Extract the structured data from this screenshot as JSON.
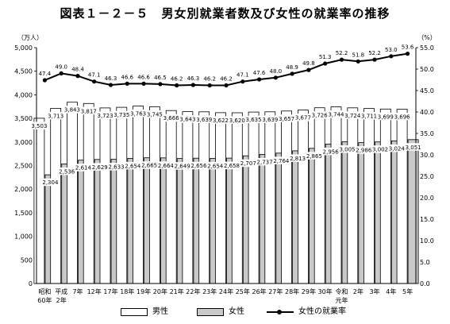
{
  "chart_data": {
    "type": "bar",
    "title": "図表１－２－５　男女別就業者数及び女性の就業率の推移",
    "left_unit": "（万人）",
    "right_unit": "（%）",
    "left_ylim": [
      0,
      5000
    ],
    "left_ticks": [
      "0",
      "500",
      "1,000",
      "1,500",
      "2,000",
      "2,500",
      "3,000",
      "3,500",
      "4,000",
      "4,500",
      "5,000"
    ],
    "right_ylim": [
      0,
      55
    ],
    "right_ticks": [
      "0.0",
      "5.0",
      "10.0",
      "15.0",
      "20.0",
      "25.0",
      "30.0",
      "35.0",
      "40.0",
      "45.0",
      "50.0",
      "55.0"
    ],
    "grid": false,
    "legend_position": "bottom",
    "categories": [
      [
        "昭和",
        "60年"
      ],
      [
        "平成",
        "2年"
      ],
      [
        "7年"
      ],
      [
        "12年"
      ],
      [
        "17年"
      ],
      [
        "18年"
      ],
      [
        "19年"
      ],
      [
        "20年"
      ],
      [
        "21年"
      ],
      [
        "22年"
      ],
      [
        "23年"
      ],
      [
        "24年"
      ],
      [
        "25年"
      ],
      [
        "26年"
      ],
      [
        "27年"
      ],
      [
        "28年"
      ],
      [
        "29年"
      ],
      [
        "30年"
      ],
      [
        "令和",
        "元年"
      ],
      [
        "2年"
      ],
      [
        "3年"
      ],
      [
        "4年"
      ],
      [
        "5年"
      ]
    ],
    "series": [
      {
        "name": "男性",
        "type": "bar",
        "axis": "left",
        "color": "#ffffff",
        "values": [
          3503,
          3713,
          3843,
          3817,
          3723,
          3735,
          3763,
          3745,
          3666,
          3643,
          3639,
          3622,
          3620,
          3635,
          3639,
          3657,
          3677,
          3726,
          3744,
          3724,
          3711,
          3699,
          3696
        ],
        "labels": [
          "3,503",
          "3,713",
          "3,843",
          "3,817",
          "3,723",
          "3,735",
          "3,763",
          "3,745",
          "3,666",
          "3,643",
          "3,639",
          "3,622",
          "3,620",
          "3,635",
          "3,639",
          "3,657",
          "3,677",
          "3,726",
          "3,744",
          "3,724",
          "3,711",
          "3,699",
          "3,696"
        ]
      },
      {
        "name": "女性",
        "type": "bar",
        "axis": "left",
        "color": "#c9c9c9",
        "values": [
          2304,
          2536,
          2614,
          2629,
          2633,
          2654,
          2665,
          2664,
          2649,
          2656,
          2654,
          2658,
          2707,
          2737,
          2764,
          2813,
          2865,
          2956,
          3005,
          2986,
          3002,
          3024,
          3051
        ],
        "labels": [
          "2,304",
          "2,536",
          "2,614",
          "2,629",
          "2,633",
          "2,654",
          "2,665",
          "2,664",
          "2,649",
          "2,656",
          "2,654",
          "2,658",
          "2,707",
          "2,737",
          "2,764",
          "2,813",
          "2,865",
          "2,956",
          "3,005",
          "2,986",
          "3,002",
          "3,024",
          "3,051"
        ]
      },
      {
        "name": "女性の就業率",
        "type": "line",
        "axis": "right",
        "color": "#000000",
        "values": [
          47.4,
          49.0,
          48.4,
          47.1,
          46.3,
          46.6,
          46.6,
          46.5,
          46.2,
          46.3,
          46.2,
          46.2,
          47.1,
          47.6,
          48.0,
          48.9,
          49.8,
          51.3,
          52.2,
          51.8,
          52.2,
          53.0,
          53.6
        ],
        "labels": [
          "47.4",
          "49.0",
          "48.4",
          "47.1",
          "46.3",
          "46.6",
          "46.6",
          "46.5",
          "46.2",
          "46.3",
          "46.2",
          "46.2",
          "47.1",
          "47.6",
          "48.0",
          "48.9",
          "49.8",
          "51.3",
          "52.2",
          "51.8",
          "52.2",
          "53.0",
          "53.6"
        ]
      }
    ]
  }
}
